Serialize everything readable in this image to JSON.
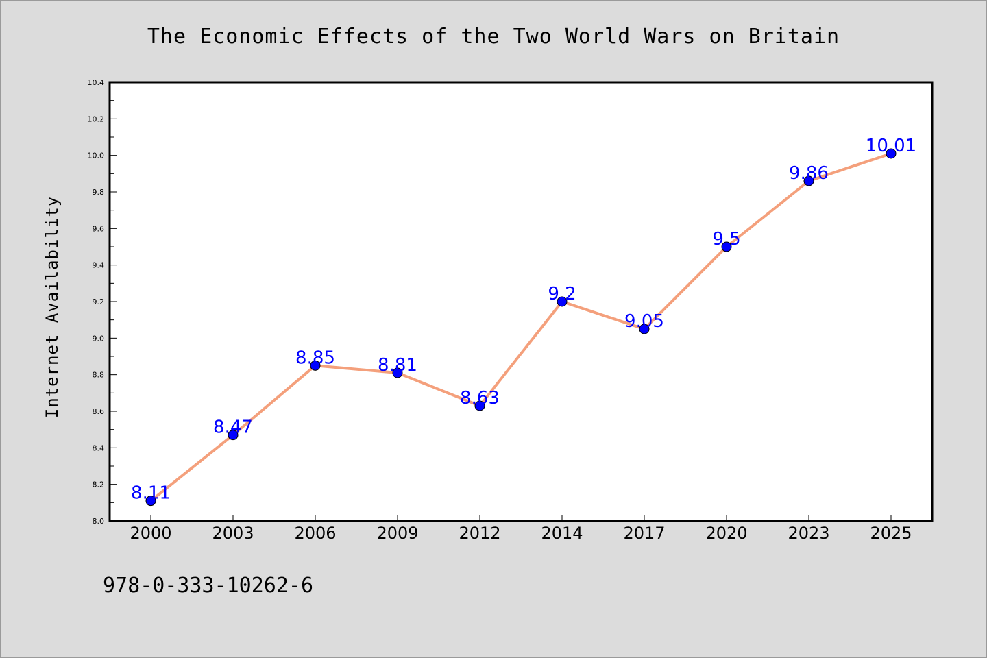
{
  "chart_data": {
    "type": "line",
    "title": "The Economic Effects of the Two World Wars on Britain",
    "xlabel": "",
    "ylabel": "Internet Availability",
    "categories": [
      "2000",
      "2003",
      "2006",
      "2009",
      "2012",
      "2014",
      "2017",
      "2020",
      "2023",
      "2025"
    ],
    "series": [
      {
        "values": [
          8.11,
          8.47,
          8.85,
          8.81,
          8.63,
          9.2,
          9.05,
          9.5,
          9.86,
          10.01
        ]
      }
    ],
    "data_labels": [
      "8.11",
      "8.47",
      "8.85",
      "8.81",
      "8.63",
      "9.2",
      "9.05",
      "9.5",
      "9.86",
      "10.01"
    ],
    "ylim": [
      8.0,
      10.4
    ],
    "yticks": [
      "8.0",
      "8.2",
      "8.4",
      "8.6",
      "8.8",
      "9.0",
      "9.2",
      "9.4",
      "9.6",
      "9.8",
      "10.0",
      "10.2",
      "10.4"
    ],
    "grid": false,
    "legend": "none",
    "colors": {
      "line": "#f4a07c",
      "marker": "#0000ff",
      "label": "#0000ff",
      "background": "#dcdcdc",
      "plot_area": "#ffffff"
    }
  },
  "footer": {
    "isbn": "978-0-333-10262-6"
  }
}
